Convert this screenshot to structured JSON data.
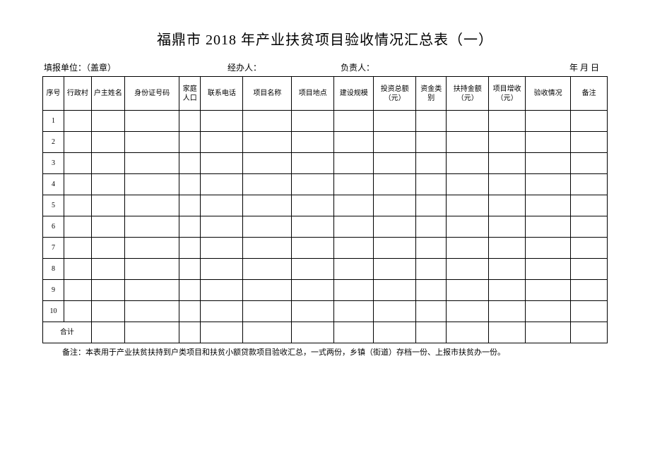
{
  "title": "福鼎市 2018 年产业扶贫项目验收情况汇总表（一）",
  "meta": {
    "unit_label": "填报单位：（盖章）",
    "handler_label": "经办人：",
    "leader_label": "负责人：",
    "date_label": "年 月 日"
  },
  "columns": {
    "seq": "序号",
    "village": "行政村",
    "head_name": "户主姓名",
    "id_number": "身份证号码",
    "family_size": "家庭人口",
    "phone": "联系电话",
    "project_name": "项目名称",
    "project_location": "项目地点",
    "build_scale": "建设规模",
    "total_invest": "投资总额（元）",
    "fund_type": "资金类别",
    "support_amount": "扶持金额（元）",
    "project_income": "项目增收（元）",
    "acceptance": "验收情况",
    "remark": "备注"
  },
  "rows": [
    {
      "seq": "1"
    },
    {
      "seq": "2"
    },
    {
      "seq": "3"
    },
    {
      "seq": "4"
    },
    {
      "seq": "5"
    },
    {
      "seq": "6"
    },
    {
      "seq": "7"
    },
    {
      "seq": "8"
    },
    {
      "seq": "9"
    },
    {
      "seq": "10"
    }
  ],
  "total_label": "合计",
  "footnote": "备注：本表用于产业扶贫扶持到户类项目和扶贫小额贷款项目验收汇总，一式两份，乡镇（街道）存档一份、上报市扶贫办一份。"
}
